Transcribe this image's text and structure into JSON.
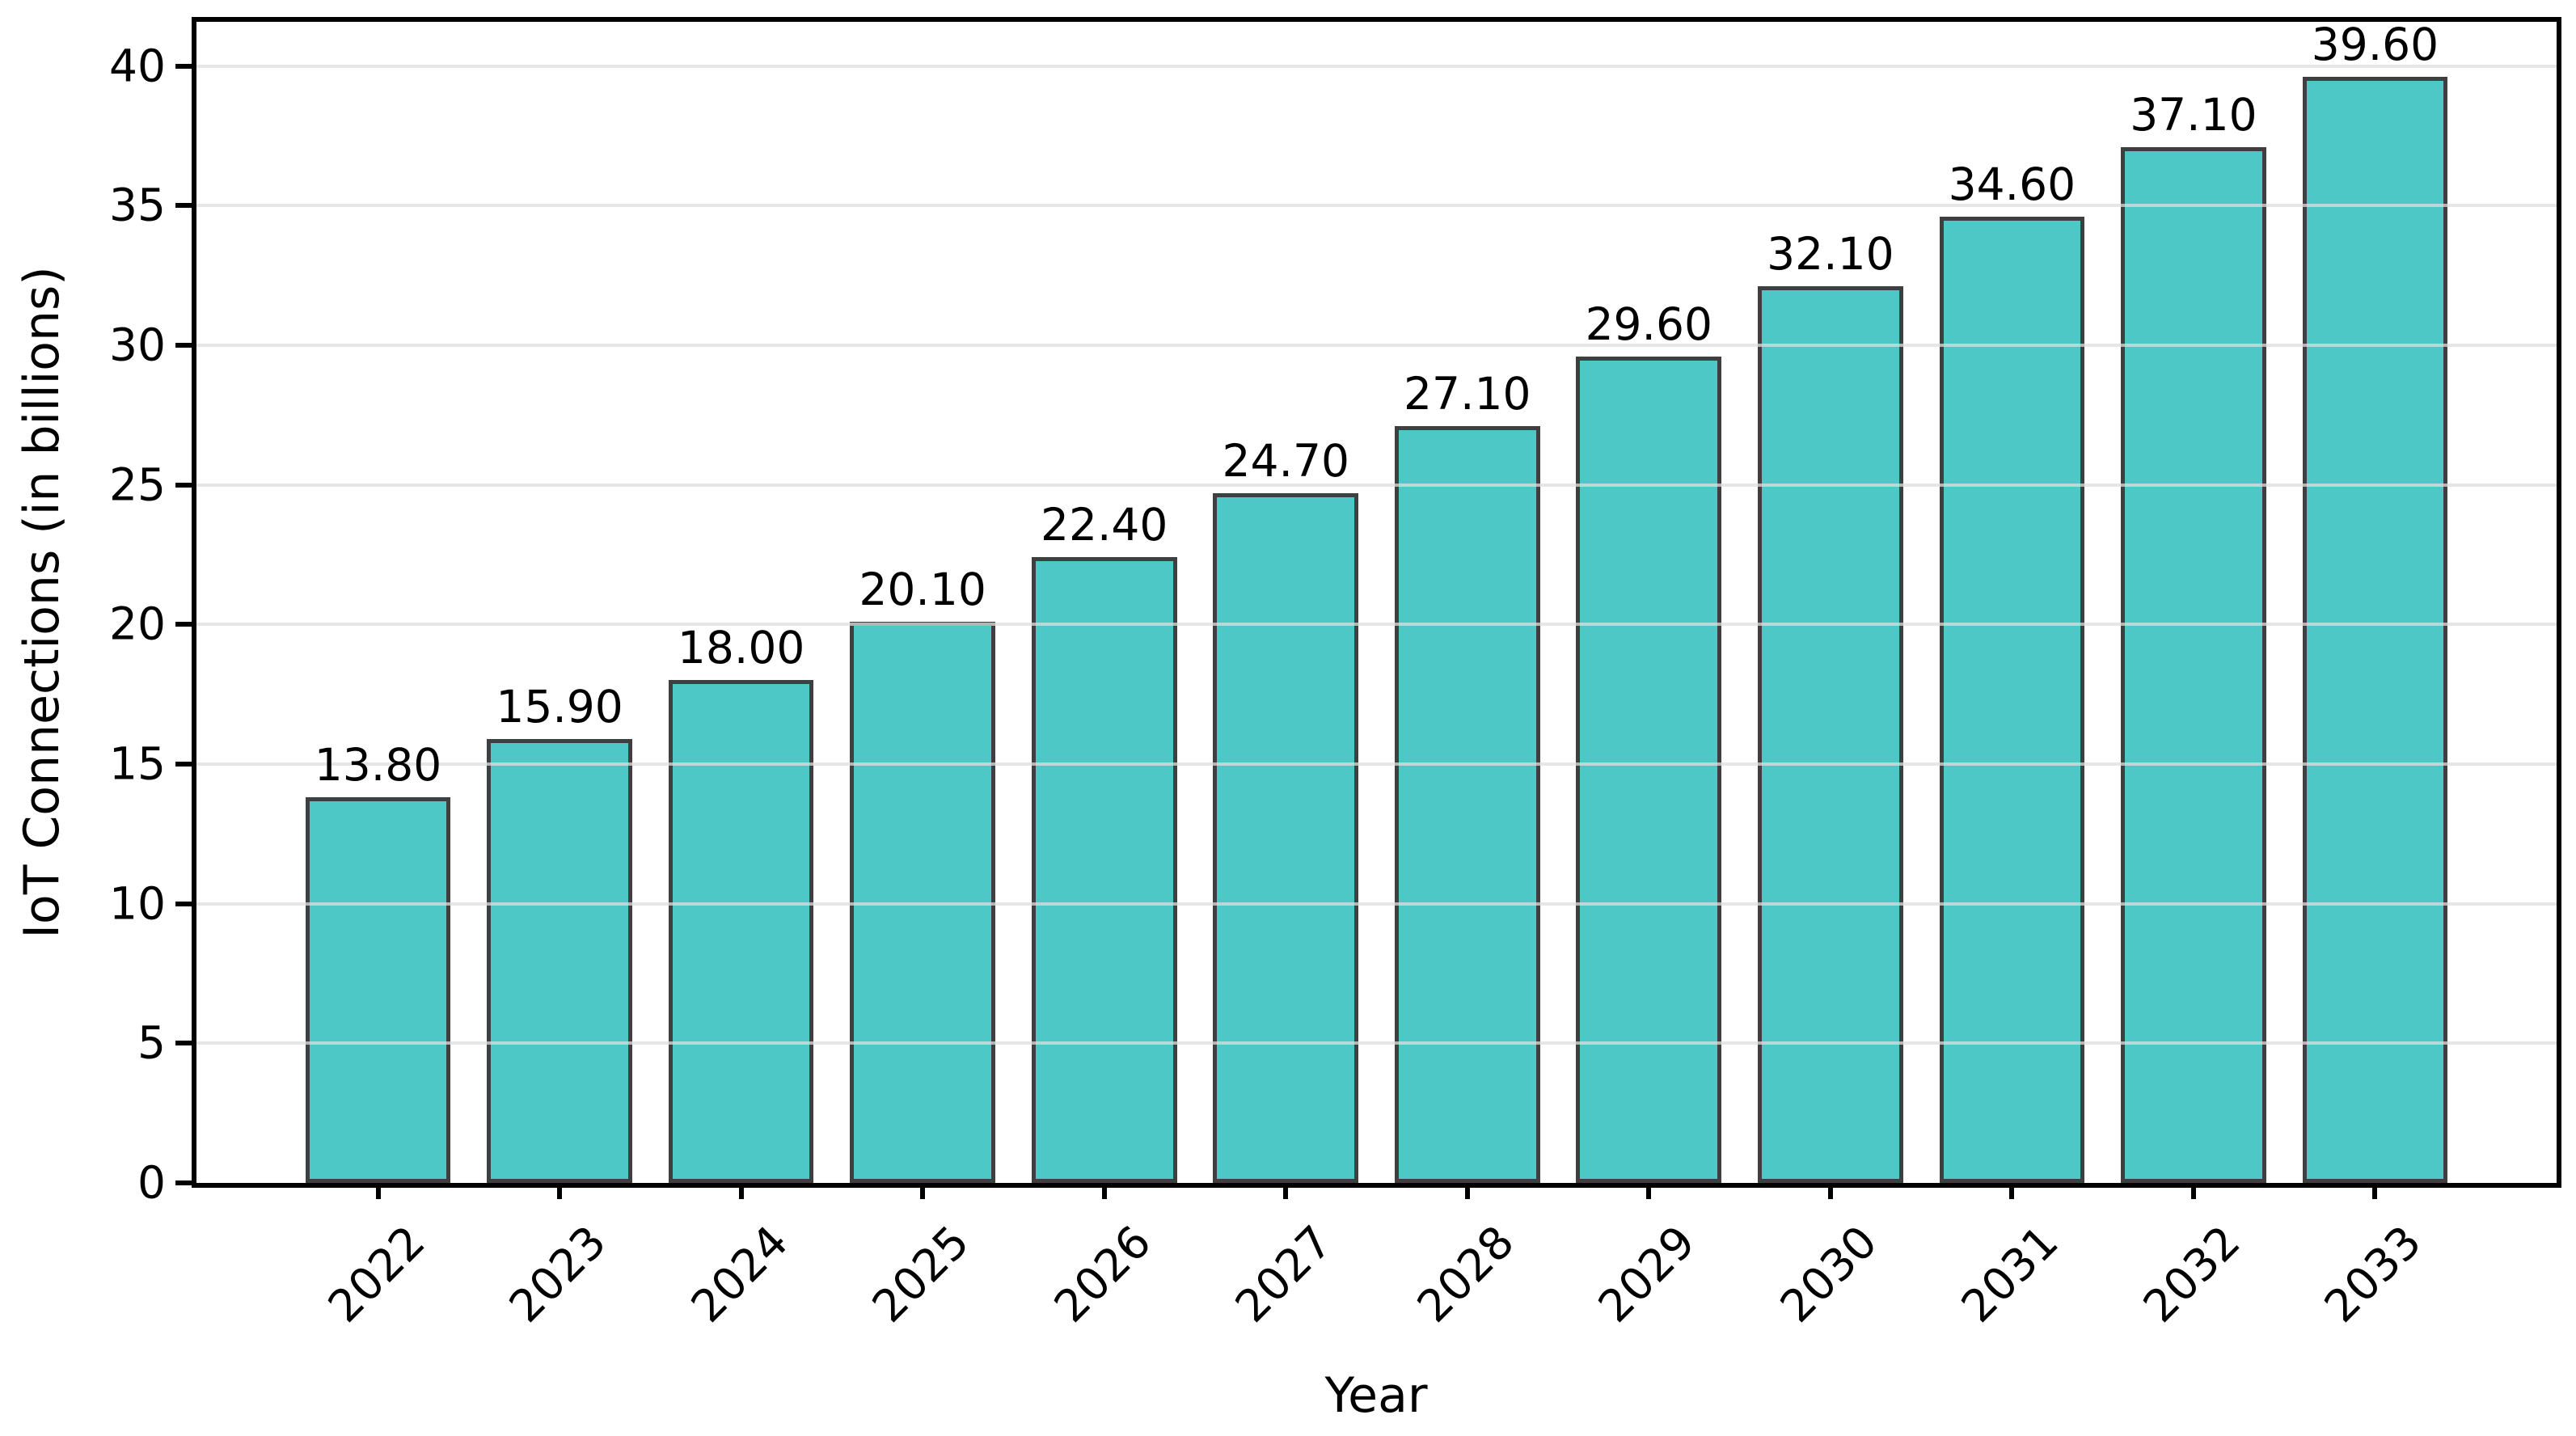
{
  "figure": {
    "background": "#ffffff"
  },
  "chart_data": {
    "type": "bar",
    "title": "",
    "xlabel": "Year",
    "ylabel": "IoT Connections (in billions)",
    "categories": [
      "2022",
      "2023",
      "2024",
      "2025",
      "2026",
      "2027",
      "2028",
      "2029",
      "2030",
      "2031",
      "2032",
      "2033"
    ],
    "values": [
      13.8,
      15.9,
      18.0,
      20.1,
      22.4,
      24.7,
      27.1,
      29.6,
      32.1,
      34.6,
      37.1,
      39.6
    ],
    "value_labels": [
      "13.80",
      "15.90",
      "18.00",
      "20.10",
      "22.40",
      "24.70",
      "27.10",
      "29.60",
      "32.10",
      "34.60",
      "37.10",
      "39.60"
    ],
    "yticks": [
      0,
      5,
      10,
      15,
      20,
      25,
      30,
      35,
      40
    ],
    "ylim": [
      0,
      41.58
    ],
    "grid": "horizontal",
    "legend": "none",
    "bar_color": "#4DC8C6",
    "bar_edge_color": "#3f3f3f",
    "axis_color": "#000000",
    "gridline_color": "#e8e8e8",
    "xtick_rotation_deg": 45
  }
}
